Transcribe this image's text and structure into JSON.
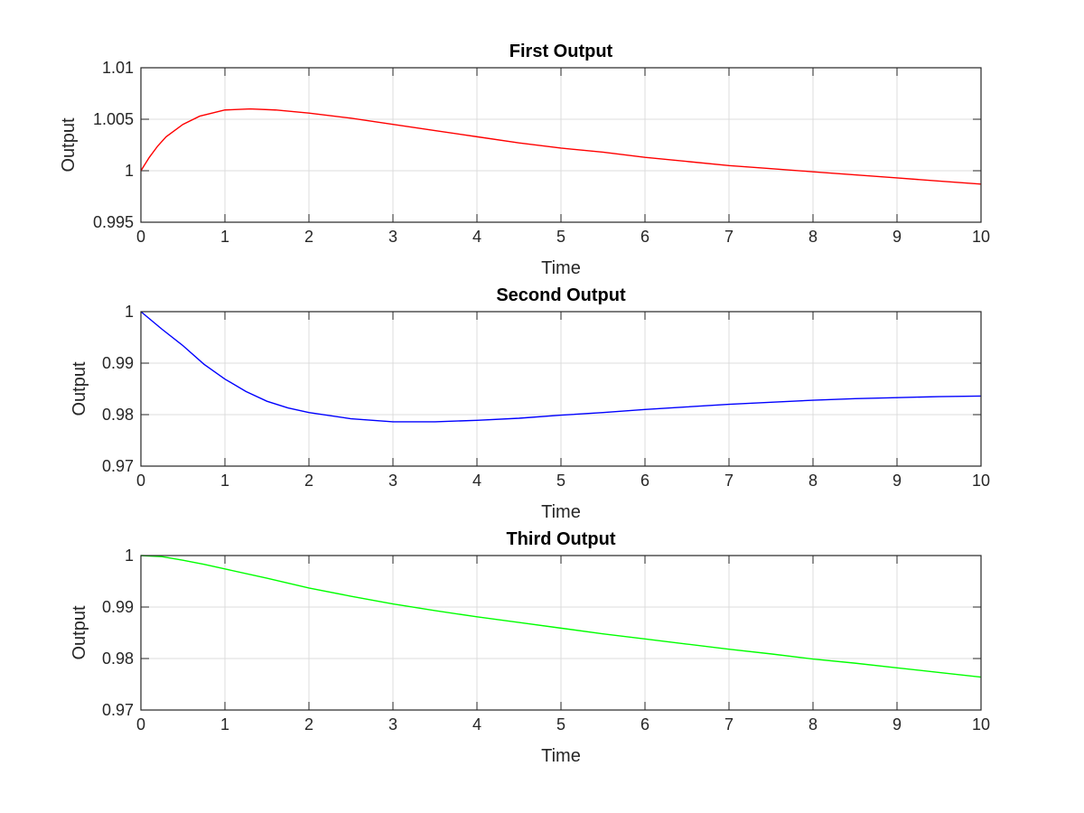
{
  "chart_data": [
    {
      "type": "line",
      "title": "First Output",
      "xlabel": "Time",
      "ylabel": "Output",
      "xlim": [
        0,
        10
      ],
      "ylim": [
        0.995,
        1.01
      ],
      "xticks": [
        "0",
        "1",
        "2",
        "3",
        "4",
        "5",
        "6",
        "7",
        "8",
        "9",
        "10"
      ],
      "yticks": [
        "0.995",
        "1",
        "1.005",
        "1.01"
      ],
      "grid": true,
      "series": [
        {
          "color": "#ff0000",
          "x": [
            0,
            0.1,
            0.2,
            0.3,
            0.5,
            0.7,
            1.0,
            1.3,
            1.6,
            2.0,
            2.5,
            3.0,
            3.5,
            4.0,
            4.5,
            5.0,
            5.5,
            6.0,
            6.5,
            7.0,
            7.5,
            8.0,
            8.5,
            9.0,
            9.5,
            10.0
          ],
          "y": [
            1.0,
            1.0013,
            1.0024,
            1.0033,
            1.0045,
            1.0053,
            1.0059,
            1.006,
            1.0059,
            1.0056,
            1.0051,
            1.0045,
            1.0039,
            1.0033,
            1.0027,
            1.0022,
            1.0018,
            1.0013,
            1.0009,
            1.0005,
            1.0002,
            0.9999,
            0.9996,
            0.9993,
            0.999,
            0.9987
          ]
        }
      ]
    },
    {
      "type": "line",
      "title": "Second Output",
      "xlabel": "Time",
      "ylabel": "Output",
      "xlim": [
        0,
        10
      ],
      "ylim": [
        0.97,
        1.0
      ],
      "xticks": [
        "0",
        "1",
        "2",
        "3",
        "4",
        "5",
        "6",
        "7",
        "8",
        "9",
        "10"
      ],
      "yticks": [
        "0.97",
        "0.98",
        "0.99",
        "1"
      ],
      "grid": true,
      "series": [
        {
          "color": "#0000ff",
          "x": [
            0,
            0.25,
            0.5,
            0.75,
            1.0,
            1.25,
            1.5,
            1.75,
            2.0,
            2.5,
            3.0,
            3.3,
            3.5,
            4.0,
            4.5,
            5.0,
            5.5,
            6.0,
            6.5,
            7.0,
            7.5,
            8.0,
            8.5,
            9.0,
            9.5,
            10.0
          ],
          "y": [
            1.0,
            0.9966,
            0.9934,
            0.9898,
            0.9869,
            0.9845,
            0.9826,
            0.9813,
            0.9804,
            0.9792,
            0.9786,
            0.9786,
            0.9786,
            0.9789,
            0.9793,
            0.9799,
            0.9804,
            0.981,
            0.9815,
            0.982,
            0.9824,
            0.9828,
            0.9831,
            0.9833,
            0.9835,
            0.9836
          ]
        }
      ]
    },
    {
      "type": "line",
      "title": "Third Output",
      "xlabel": "Time",
      "ylabel": "Output",
      "xlim": [
        0,
        10
      ],
      "ylim": [
        0.97,
        1.0
      ],
      "xticks": [
        "0",
        "1",
        "2",
        "3",
        "4",
        "5",
        "6",
        "7",
        "8",
        "9",
        "10"
      ],
      "yticks": [
        "0.97",
        "0.98",
        "0.99",
        "1"
      ],
      "grid": true,
      "series": [
        {
          "color": "#00ff00",
          "x": [
            0,
            0.25,
            0.5,
            0.75,
            1.0,
            1.5,
            2.0,
            2.5,
            3.0,
            3.5,
            4.0,
            4.5,
            5.0,
            5.5,
            6.0,
            6.5,
            7.0,
            7.5,
            8.0,
            8.5,
            9.0,
            9.5,
            10.0
          ],
          "y": [
            1.0,
            0.9998,
            0.9991,
            0.9983,
            0.9974,
            0.9956,
            0.9937,
            0.9921,
            0.9906,
            0.9893,
            0.9881,
            0.987,
            0.9859,
            0.9848,
            0.9838,
            0.9828,
            0.9818,
            0.9809,
            0.9799,
            0.9791,
            0.9782,
            0.9773,
            0.9764
          ]
        }
      ]
    }
  ]
}
